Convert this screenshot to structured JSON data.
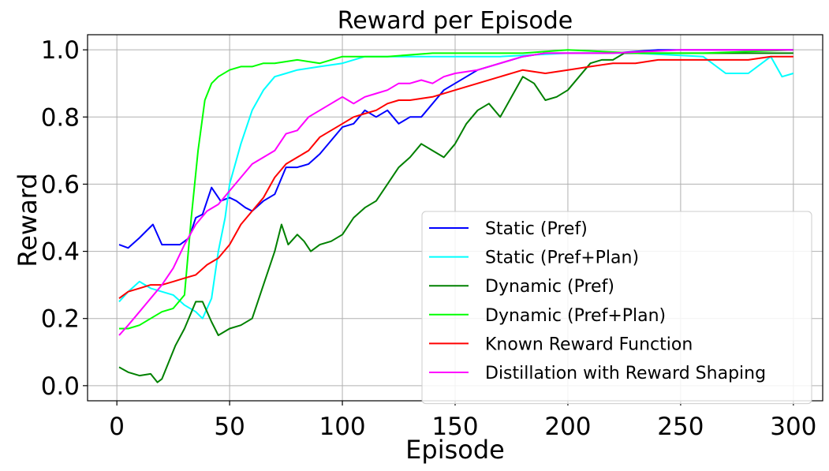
{
  "chart_data": {
    "type": "line",
    "title": "Reward per Episode",
    "xlabel": "Episode",
    "ylabel": "Reward",
    "xlim": [
      -13,
      313
    ],
    "ylim": [
      -0.045,
      1.045
    ],
    "xticks": [
      0,
      50,
      100,
      150,
      200,
      250,
      300
    ],
    "yticks": [
      0.0,
      0.2,
      0.4,
      0.6,
      0.8,
      1.0
    ],
    "grid": true,
    "legend_position": "lower-right",
    "series": [
      {
        "name": "Static (Pref)",
        "color": "#0000ff",
        "points": [
          [
            1,
            0.42
          ],
          [
            5,
            0.41
          ],
          [
            10,
            0.44
          ],
          [
            13,
            0.46
          ],
          [
            16,
            0.48
          ],
          [
            20,
            0.42
          ],
          [
            25,
            0.42
          ],
          [
            28,
            0.42
          ],
          [
            32,
            0.44
          ],
          [
            35,
            0.5
          ],
          [
            38,
            0.51
          ],
          [
            42,
            0.59
          ],
          [
            46,
            0.55
          ],
          [
            50,
            0.56
          ],
          [
            53,
            0.55
          ],
          [
            57,
            0.53
          ],
          [
            60,
            0.52
          ],
          [
            65,
            0.55
          ],
          [
            70,
            0.57
          ],
          [
            75,
            0.65
          ],
          [
            80,
            0.65
          ],
          [
            85,
            0.66
          ],
          [
            90,
            0.69
          ],
          [
            95,
            0.73
          ],
          [
            100,
            0.77
          ],
          [
            105,
            0.78
          ],
          [
            110,
            0.82
          ],
          [
            115,
            0.8
          ],
          [
            120,
            0.82
          ],
          [
            125,
            0.78
          ],
          [
            130,
            0.8
          ],
          [
            135,
            0.8
          ],
          [
            140,
            0.84
          ],
          [
            145,
            0.88
          ],
          [
            150,
            0.9
          ],
          [
            155,
            0.92
          ],
          [
            160,
            0.94
          ],
          [
            165,
            0.95
          ],
          [
            170,
            0.96
          ],
          [
            180,
            0.98
          ],
          [
            190,
            0.99
          ],
          [
            200,
            0.99
          ],
          [
            220,
            0.99
          ],
          [
            240,
            1.0
          ],
          [
            300,
            1.0
          ]
        ]
      },
      {
        "name": "Static (Pref+Plan)",
        "color": "#00ffff",
        "points": [
          [
            1,
            0.25
          ],
          [
            5,
            0.28
          ],
          [
            10,
            0.31
          ],
          [
            15,
            0.29
          ],
          [
            20,
            0.28
          ],
          [
            25,
            0.27
          ],
          [
            30,
            0.24
          ],
          [
            35,
            0.22
          ],
          [
            38,
            0.2
          ],
          [
            42,
            0.26
          ],
          [
            45,
            0.4
          ],
          [
            48,
            0.5
          ],
          [
            50,
            0.6
          ],
          [
            55,
            0.72
          ],
          [
            60,
            0.82
          ],
          [
            65,
            0.88
          ],
          [
            70,
            0.92
          ],
          [
            75,
            0.93
          ],
          [
            80,
            0.94
          ],
          [
            90,
            0.95
          ],
          [
            100,
            0.96
          ],
          [
            110,
            0.98
          ],
          [
            130,
            0.98
          ],
          [
            150,
            0.98
          ],
          [
            170,
            0.98
          ],
          [
            200,
            0.99
          ],
          [
            230,
            0.99
          ],
          [
            260,
            0.98
          ],
          [
            270,
            0.93
          ],
          [
            280,
            0.93
          ],
          [
            290,
            0.98
          ],
          [
            295,
            0.92
          ],
          [
            300,
            0.93
          ]
        ]
      },
      {
        "name": "Dynamic (Pref)",
        "color": "#008000",
        "points": [
          [
            1,
            0.055
          ],
          [
            5,
            0.04
          ],
          [
            10,
            0.03
          ],
          [
            15,
            0.035
          ],
          [
            18,
            0.01
          ],
          [
            20,
            0.02
          ],
          [
            23,
            0.07
          ],
          [
            26,
            0.12
          ],
          [
            30,
            0.17
          ],
          [
            35,
            0.25
          ],
          [
            38,
            0.25
          ],
          [
            42,
            0.19
          ],
          [
            45,
            0.15
          ],
          [
            50,
            0.17
          ],
          [
            55,
            0.18
          ],
          [
            60,
            0.2
          ],
          [
            65,
            0.3
          ],
          [
            70,
            0.4
          ],
          [
            73,
            0.48
          ],
          [
            76,
            0.42
          ],
          [
            80,
            0.45
          ],
          [
            83,
            0.43
          ],
          [
            86,
            0.4
          ],
          [
            90,
            0.42
          ],
          [
            95,
            0.43
          ],
          [
            100,
            0.45
          ],
          [
            105,
            0.5
          ],
          [
            110,
            0.53
          ],
          [
            115,
            0.55
          ],
          [
            120,
            0.6
          ],
          [
            125,
            0.65
          ],
          [
            130,
            0.68
          ],
          [
            135,
            0.72
          ],
          [
            140,
            0.7
          ],
          [
            145,
            0.68
          ],
          [
            150,
            0.72
          ],
          [
            155,
            0.78
          ],
          [
            160,
            0.82
          ],
          [
            165,
            0.84
          ],
          [
            170,
            0.8
          ],
          [
            175,
            0.86
          ],
          [
            180,
            0.92
          ],
          [
            185,
            0.9
          ],
          [
            190,
            0.85
          ],
          [
            195,
            0.86
          ],
          [
            200,
            0.88
          ],
          [
            205,
            0.92
          ],
          [
            210,
            0.96
          ],
          [
            215,
            0.97
          ],
          [
            220,
            0.97
          ],
          [
            225,
            0.99
          ],
          [
            230,
            0.99
          ],
          [
            260,
            0.99
          ],
          [
            300,
            0.99
          ]
        ]
      },
      {
        "name": "Dynamic (Pref+Plan)",
        "color": "#00ff00",
        "points": [
          [
            1,
            0.17
          ],
          [
            5,
            0.17
          ],
          [
            10,
            0.18
          ],
          [
            15,
            0.2
          ],
          [
            20,
            0.22
          ],
          [
            25,
            0.23
          ],
          [
            30,
            0.27
          ],
          [
            33,
            0.5
          ],
          [
            36,
            0.7
          ],
          [
            39,
            0.85
          ],
          [
            42,
            0.9
          ],
          [
            45,
            0.92
          ],
          [
            50,
            0.94
          ],
          [
            55,
            0.95
          ],
          [
            60,
            0.95
          ],
          [
            65,
            0.96
          ],
          [
            70,
            0.96
          ],
          [
            80,
            0.97
          ],
          [
            90,
            0.96
          ],
          [
            100,
            0.98
          ],
          [
            120,
            0.98
          ],
          [
            140,
            0.99
          ],
          [
            160,
            0.99
          ],
          [
            180,
            0.99
          ],
          [
            200,
            1.0
          ],
          [
            230,
            0.99
          ],
          [
            260,
            0.99
          ],
          [
            300,
            1.0
          ]
        ]
      },
      {
        "name": "Known Reward Function",
        "color": "#ff0000",
        "points": [
          [
            1,
            0.26
          ],
          [
            5,
            0.28
          ],
          [
            10,
            0.29
          ],
          [
            15,
            0.3
          ],
          [
            20,
            0.3
          ],
          [
            25,
            0.31
          ],
          [
            30,
            0.32
          ],
          [
            35,
            0.33
          ],
          [
            40,
            0.36
          ],
          [
            45,
            0.38
          ],
          [
            50,
            0.42
          ],
          [
            55,
            0.48
          ],
          [
            60,
            0.52
          ],
          [
            65,
            0.56
          ],
          [
            70,
            0.62
          ],
          [
            75,
            0.66
          ],
          [
            80,
            0.68
          ],
          [
            85,
            0.7
          ],
          [
            90,
            0.74
          ],
          [
            95,
            0.76
          ],
          [
            100,
            0.78
          ],
          [
            105,
            0.8
          ],
          [
            110,
            0.81
          ],
          [
            115,
            0.82
          ],
          [
            120,
            0.84
          ],
          [
            125,
            0.85
          ],
          [
            130,
            0.85
          ],
          [
            140,
            0.86
          ],
          [
            150,
            0.88
          ],
          [
            160,
            0.9
          ],
          [
            170,
            0.92
          ],
          [
            180,
            0.94
          ],
          [
            190,
            0.93
          ],
          [
            200,
            0.94
          ],
          [
            210,
            0.95
          ],
          [
            220,
            0.96
          ],
          [
            230,
            0.96
          ],
          [
            240,
            0.97
          ],
          [
            250,
            0.97
          ],
          [
            260,
            0.97
          ],
          [
            270,
            0.97
          ],
          [
            280,
            0.97
          ],
          [
            290,
            0.98
          ],
          [
            300,
            0.98
          ]
        ]
      },
      {
        "name": "Distillation with Reward Shaping",
        "color": "#ff00ff",
        "points": [
          [
            1,
            0.15
          ],
          [
            5,
            0.18
          ],
          [
            10,
            0.22
          ],
          [
            15,
            0.26
          ],
          [
            20,
            0.3
          ],
          [
            25,
            0.35
          ],
          [
            30,
            0.42
          ],
          [
            35,
            0.48
          ],
          [
            40,
            0.52
          ],
          [
            45,
            0.54
          ],
          [
            50,
            0.58
          ],
          [
            55,
            0.62
          ],
          [
            60,
            0.66
          ],
          [
            65,
            0.68
          ],
          [
            70,
            0.7
          ],
          [
            75,
            0.75
          ],
          [
            80,
            0.76
          ],
          [
            85,
            0.8
          ],
          [
            90,
            0.82
          ],
          [
            95,
            0.84
          ],
          [
            100,
            0.86
          ],
          [
            105,
            0.84
          ],
          [
            110,
            0.86
          ],
          [
            115,
            0.87
          ],
          [
            120,
            0.88
          ],
          [
            125,
            0.9
          ],
          [
            130,
            0.9
          ],
          [
            135,
            0.91
          ],
          [
            140,
            0.9
          ],
          [
            145,
            0.92
          ],
          [
            150,
            0.93
          ],
          [
            160,
            0.94
          ],
          [
            170,
            0.96
          ],
          [
            180,
            0.98
          ],
          [
            190,
            0.99
          ],
          [
            200,
            0.99
          ],
          [
            220,
            0.99
          ],
          [
            250,
            1.0
          ],
          [
            300,
            1.0
          ]
        ]
      }
    ]
  }
}
